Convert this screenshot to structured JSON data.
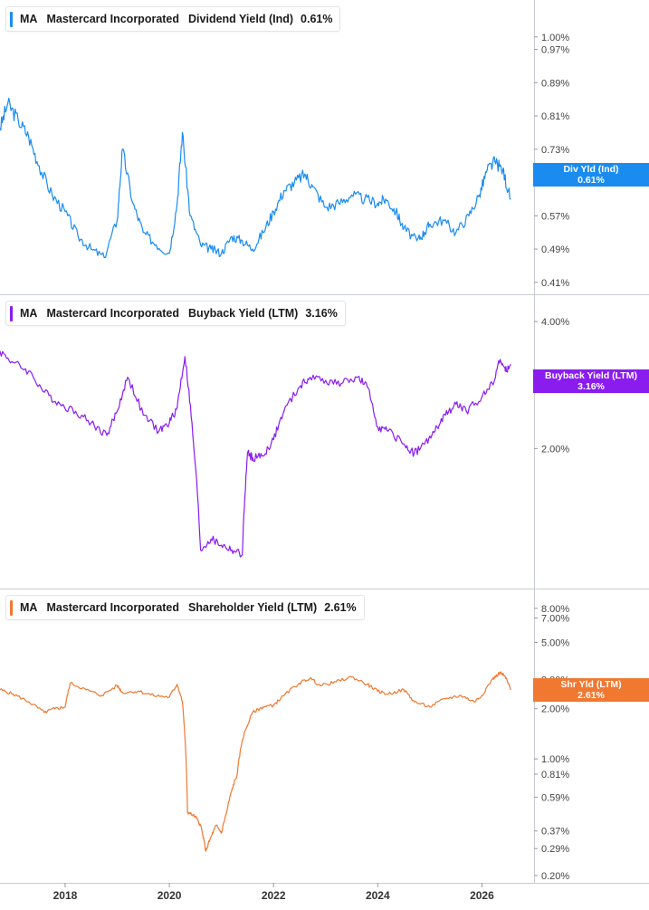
{
  "chart_data": [
    {
      "type": "line",
      "ticker": "MA",
      "company": "Mastercard Incorporated",
      "metric": "Dividend Yield (Ind)",
      "value_label": "0.61%",
      "tag_label": "Div Yld (Ind)",
      "tag_value": "0.61%",
      "color": "#1a8cf0",
      "ylim": [
        0.39,
        1.08
      ],
      "yticks": [
        1.0,
        0.97,
        0.89,
        0.81,
        0.73,
        0.65,
        0.57,
        0.49,
        0.41
      ],
      "ytick_labels": [
        "1.00%",
        "0.97%",
        "0.89%",
        "0.81%",
        "0.73%",
        "0.65%",
        "0.57%",
        "0.49%",
        "0.41%"
      ],
      "series": [
        {
          "x": [
            2016.75,
            2016.9,
            2017.1,
            2017.3,
            2017.5,
            2017.75,
            2018.0,
            2018.25,
            2018.5,
            2018.75,
            2019.0,
            2019.1,
            2019.3,
            2019.5,
            2019.75,
            2020.0,
            2020.15,
            2020.25,
            2020.4,
            2020.6,
            2020.8,
            2021.0,
            2021.2,
            2021.4,
            2021.6,
            2021.8,
            2022.0,
            2022.2,
            2022.4,
            2022.6,
            2022.75,
            2023.0,
            2023.25,
            2023.5,
            2023.75,
            2024.0,
            2024.15,
            2024.35,
            2024.5,
            2024.75,
            2024.9,
            2025.0,
            2025.25,
            2025.5,
            2025.75,
            2025.95,
            2026.1,
            2026.25,
            2026.4,
            2026.55
          ],
          "y": [
            0.78,
            0.84,
            0.8,
            0.76,
            0.69,
            0.62,
            0.58,
            0.52,
            0.49,
            0.47,
            0.56,
            0.73,
            0.6,
            0.53,
            0.5,
            0.48,
            0.6,
            0.77,
            0.57,
            0.5,
            0.49,
            0.48,
            0.52,
            0.51,
            0.49,
            0.53,
            0.58,
            0.63,
            0.65,
            0.67,
            0.64,
            0.59,
            0.6,
            0.62,
            0.61,
            0.6,
            0.61,
            0.58,
            0.54,
            0.51,
            0.53,
            0.55,
            0.56,
            0.53,
            0.57,
            0.62,
            0.68,
            0.7,
            0.68,
            0.61
          ]
        }
      ]
    },
    {
      "type": "line",
      "ticker": "MA",
      "company": "Mastercard Incorporated",
      "metric": "Buyback Yield (LTM)",
      "value_label": "3.16%",
      "tag_label": "Buyback Yield (LTM)",
      "tag_value": "3.16%",
      "color": "#8a1cf0",
      "ylim": [
        0.95,
        4.55
      ],
      "yticks": [
        4.0,
        2.0
      ],
      "ytick_labels": [
        "4.00%",
        "2.00%"
      ],
      "series": [
        {
          "x": [
            2016.75,
            2017.0,
            2017.3,
            2017.6,
            2017.9,
            2018.2,
            2018.5,
            2018.8,
            2019.0,
            2019.2,
            2019.5,
            2019.8,
            2020.0,
            2020.15,
            2020.3,
            2020.45,
            2020.6,
            2020.8,
            2021.0,
            2021.2,
            2021.4,
            2021.5,
            2021.6,
            2021.8,
            2022.0,
            2022.2,
            2022.5,
            2022.7,
            2023.0,
            2023.3,
            2023.6,
            2023.8,
            2024.0,
            2024.2,
            2024.5,
            2024.7,
            2024.9,
            2025.1,
            2025.3,
            2025.5,
            2025.7,
            2026.0,
            2026.2,
            2026.35,
            2026.45,
            2026.55
          ],
          "y": [
            3.4,
            3.2,
            3.05,
            2.72,
            2.55,
            2.45,
            2.3,
            2.15,
            2.45,
            2.95,
            2.4,
            2.2,
            2.3,
            2.5,
            3.3,
            2.15,
            1.15,
            1.22,
            1.18,
            1.15,
            1.12,
            1.95,
            1.9,
            1.92,
            2.1,
            2.45,
            2.8,
            2.95,
            2.9,
            2.85,
            2.95,
            2.8,
            2.25,
            2.2,
            2.05,
            1.95,
            2.05,
            2.2,
            2.4,
            2.55,
            2.45,
            2.65,
            2.85,
            3.25,
            3.05,
            3.16
          ]
        }
      ]
    },
    {
      "type": "line",
      "ticker": "MA",
      "company": "Mastercard Incorporated",
      "metric": "Shareholder Yield (LTM)",
      "value_label": "2.61%",
      "tag_label": "Shr Yld (LTM)",
      "tag_value": "2.61%",
      "color": "#f07830",
      "ylim": [
        0.19,
        10.0
      ],
      "yticks": [
        8.0,
        7.0,
        5.0,
        3.0,
        2.0,
        1.0,
        0.81,
        0.59,
        0.37,
        0.29,
        0.2
      ],
      "ytick_labels": [
        "8.00%",
        "7.00%",
        "5.00%",
        "3.00%",
        "2.00%",
        "1.00%",
        "0.81%",
        "0.59%",
        "0.37%",
        "0.29%",
        "0.20%"
      ],
      "series": [
        {
          "x": [
            2016.75,
            2017.0,
            2017.3,
            2017.6,
            2017.8,
            2018.0,
            2018.1,
            2018.4,
            2018.7,
            2019.0,
            2019.1,
            2019.4,
            2019.7,
            2020.0,
            2020.15,
            2020.25,
            2020.35,
            2020.5,
            2020.6,
            2020.7,
            2020.8,
            2020.9,
            2021.0,
            2021.1,
            2021.2,
            2021.3,
            2021.4,
            2021.6,
            2021.8,
            2022.0,
            2022.2,
            2022.5,
            2022.7,
            2022.9,
            2023.2,
            2023.5,
            2023.8,
            2024.0,
            2024.2,
            2024.5,
            2024.7,
            2025.0,
            2025.3,
            2025.6,
            2025.85,
            2026.0,
            2026.2,
            2026.35,
            2026.45,
            2026.55
          ],
          "y": [
            2.6,
            2.45,
            2.2,
            1.9,
            2.0,
            2.05,
            2.85,
            2.6,
            2.4,
            2.75,
            2.5,
            2.55,
            2.4,
            2.35,
            2.8,
            2.2,
            0.48,
            0.45,
            0.4,
            0.28,
            0.34,
            0.4,
            0.36,
            0.48,
            0.65,
            0.8,
            1.3,
            1.9,
            2.05,
            2.1,
            2.4,
            2.85,
            3.05,
            2.75,
            2.9,
            3.1,
            2.8,
            2.55,
            2.45,
            2.6,
            2.2,
            2.05,
            2.3,
            2.4,
            2.2,
            2.4,
            3.0,
            3.3,
            3.1,
            2.61
          ]
        }
      ]
    }
  ],
  "x_axis": {
    "ticks": [
      2018,
      2020,
      2022,
      2024,
      2026
    ],
    "tick_labels": [
      "2018",
      "2020",
      "2022",
      "2024",
      "2026"
    ],
    "xlim": [
      2016.75,
      2027.0
    ]
  },
  "colors": {
    "grid": "#e4e6ea",
    "axis_text": "#444444",
    "border": "#c8ccd2"
  }
}
